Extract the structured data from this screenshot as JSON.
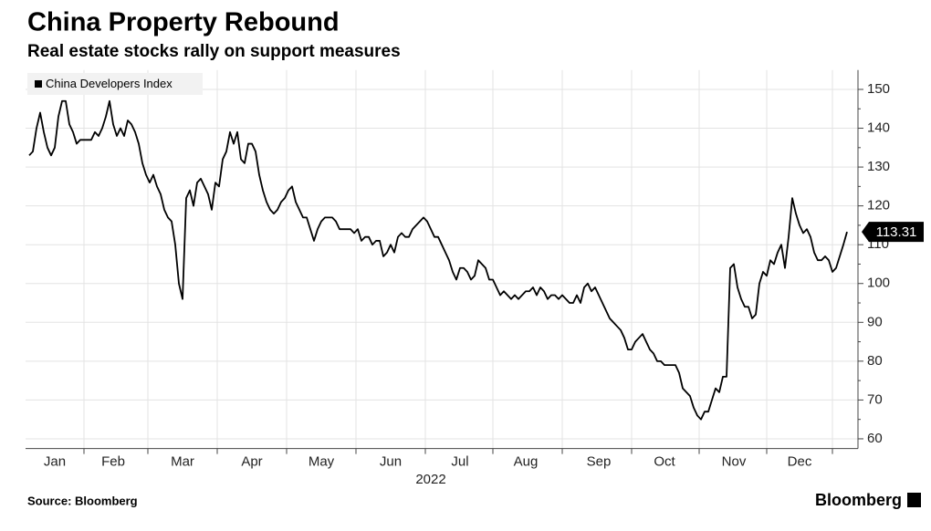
{
  "chart_data": {
    "type": "line",
    "title": "China Property Rebound",
    "subtitle": "Real estate stocks rally on support measures",
    "xlabel": "2022",
    "source": "Source: Bloomberg",
    "brand": "Bloomberg",
    "ylim": [
      57.5,
      155
    ],
    "yticks": [
      60,
      70,
      80,
      90,
      100,
      110,
      120,
      130,
      140,
      150
    ],
    "grid": true,
    "legend": "upper left",
    "categories": [
      null,
      null,
      null,
      null,
      null,
      null,
      null,
      "Jan",
      null,
      null,
      null,
      null,
      null,
      null,
      null,
      null,
      null,
      null,
      null,
      null,
      null,
      null,
      null,
      "Feb",
      null,
      null,
      null,
      null,
      null,
      null,
      null,
      null,
      null,
      null,
      null,
      null,
      null,
      null,
      null,
      null,
      null,
      null,
      "Mar",
      null,
      null,
      null,
      null,
      null,
      null,
      null,
      null,
      null,
      null,
      null,
      null,
      null,
      null,
      null,
      null,
      null,
      null,
      "Apr",
      null,
      null,
      null,
      null,
      null,
      null,
      null,
      null,
      null,
      null,
      null,
      null,
      null,
      null,
      null,
      null,
      null,
      null,
      "May",
      null,
      null,
      null,
      null,
      null,
      null,
      null,
      null,
      null,
      null,
      null,
      null,
      null,
      null,
      null,
      null,
      null,
      null,
      "Jun",
      null,
      null,
      null,
      null,
      null,
      null,
      null,
      null,
      null,
      null,
      null,
      null,
      null,
      null,
      null,
      null,
      null,
      null,
      "Jul",
      null,
      null,
      null,
      null,
      null,
      null,
      null,
      null,
      null,
      null,
      null,
      null,
      null,
      null,
      null,
      null,
      null,
      "Aug",
      null,
      null,
      null,
      null,
      null,
      null,
      null,
      null,
      null,
      null,
      null,
      null,
      null,
      null,
      null,
      null,
      null,
      null,
      null,
      "Sep",
      null,
      null,
      null,
      null,
      null,
      null,
      null,
      null,
      null,
      null,
      null,
      null,
      null,
      null,
      null,
      null,
      null,
      "Oct",
      null,
      null,
      null,
      null,
      null,
      null,
      null,
      null,
      null,
      null,
      null,
      null,
      null,
      null,
      null,
      null,
      null,
      null,
      "Nov",
      null,
      null,
      null,
      null,
      null,
      null,
      null,
      null,
      null,
      null,
      null,
      null,
      null,
      null,
      null,
      null,
      null,
      "Dec",
      null,
      null,
      null,
      null,
      null,
      null,
      null,
      null,
      null,
      null,
      null,
      null,
      null
    ],
    "series": [
      {
        "name": "China Developers Index",
        "color": "#000000",
        "values": [
          133,
          134,
          140,
          144,
          139,
          135,
          133,
          135,
          143,
          147,
          147,
          141,
          139,
          136,
          137,
          137,
          137,
          137,
          139,
          138,
          140,
          143,
          147,
          141,
          138,
          140,
          138,
          142,
          141,
          139,
          136,
          131,
          128,
          126,
          128,
          125,
          123,
          119,
          117,
          116,
          110,
          100,
          96,
          122,
          124,
          120,
          126,
          127,
          125,
          123,
          119,
          126,
          125,
          132,
          134,
          139,
          136,
          139,
          132,
          131,
          136,
          136,
          134,
          128,
          124,
          121,
          119,
          118,
          119,
          121,
          122,
          124,
          125,
          121,
          119,
          117,
          117,
          114,
          111,
          114,
          116,
          117,
          117,
          117,
          116,
          114,
          114,
          114,
          114,
          113,
          114,
          111,
          112,
          112,
          110,
          111,
          111,
          107,
          108,
          110,
          108,
          112,
          113,
          112,
          112,
          114,
          115,
          116,
          117,
          116,
          114,
          112,
          112,
          110,
          108,
          106,
          103,
          101,
          104,
          104,
          103,
          101,
          102,
          106,
          105,
          104,
          101,
          101,
          99,
          97,
          98,
          97,
          96,
          97,
          96,
          97,
          98,
          98,
          99,
          97,
          99,
          98,
          96,
          97,
          97,
          96,
          97,
          96,
          95,
          95,
          97,
          95,
          99,
          100,
          98,
          99,
          97,
          95,
          93,
          91,
          90,
          89,
          88,
          86,
          83,
          83,
          85,
          86,
          87,
          85,
          83,
          82,
          80,
          80,
          79,
          79,
          79,
          79,
          77,
          73,
          72,
          71,
          68,
          66,
          65,
          67,
          67,
          70,
          73,
          72,
          76,
          76,
          104,
          105,
          99,
          96,
          94,
          94,
          91,
          92,
          100,
          103,
          102,
          106,
          105,
          108,
          110,
          104,
          112,
          122,
          118,
          115,
          113,
          114,
          112,
          108,
          106,
          106,
          107,
          106,
          103,
          104,
          107,
          110,
          113.31
        ]
      }
    ]
  }
}
